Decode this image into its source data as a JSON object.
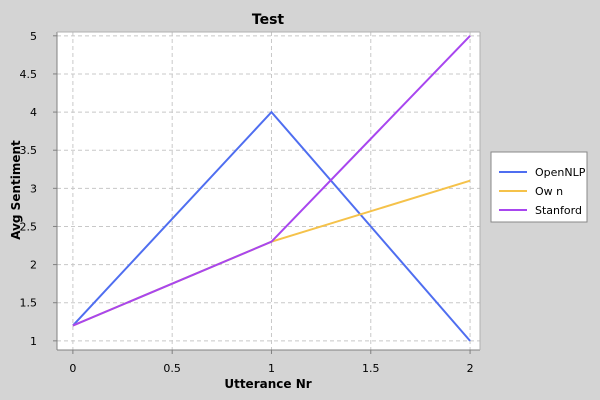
{
  "chart_data": {
    "type": "line",
    "title": "Test",
    "xlabel": "Utterance Nr",
    "ylabel": "Avg Sentiment",
    "xlim": [
      -0.08,
      2.05
    ],
    "ylim": [
      0.88,
      5.05
    ],
    "x_ticks": [
      0,
      0.5,
      1,
      1.5,
      2
    ],
    "x_tick_labels": [
      "0",
      "0.5",
      "1",
      "1.5",
      "2"
    ],
    "y_ticks": [
      1,
      1.5,
      2,
      2.5,
      3,
      3.5,
      4,
      4.5,
      5
    ],
    "y_tick_labels": [
      "1",
      "1.5",
      "2",
      "2.5",
      "3",
      "3.5",
      "4",
      "4.5",
      "5"
    ],
    "grid": true,
    "legend_position": "right",
    "series": [
      {
        "name": "OpenNLP",
        "color": "#4f6ef0",
        "x": [
          0,
          1,
          2
        ],
        "y": [
          1.2,
          4.0,
          1.0
        ]
      },
      {
        "name": "Ow n",
        "color": "#f5c24a",
        "x": [
          0,
          1,
          2
        ],
        "y": [
          1.2,
          2.3,
          3.1
        ]
      },
      {
        "name": "Stanford",
        "color": "#a846ef",
        "x": [
          0,
          1,
          2
        ],
        "y": [
          1.2,
          2.3,
          5.0
        ]
      }
    ]
  },
  "colors": {
    "page_background": "#d4d4d4",
    "plot_background": "#ffffff",
    "grid": "#c8c8c8"
  }
}
